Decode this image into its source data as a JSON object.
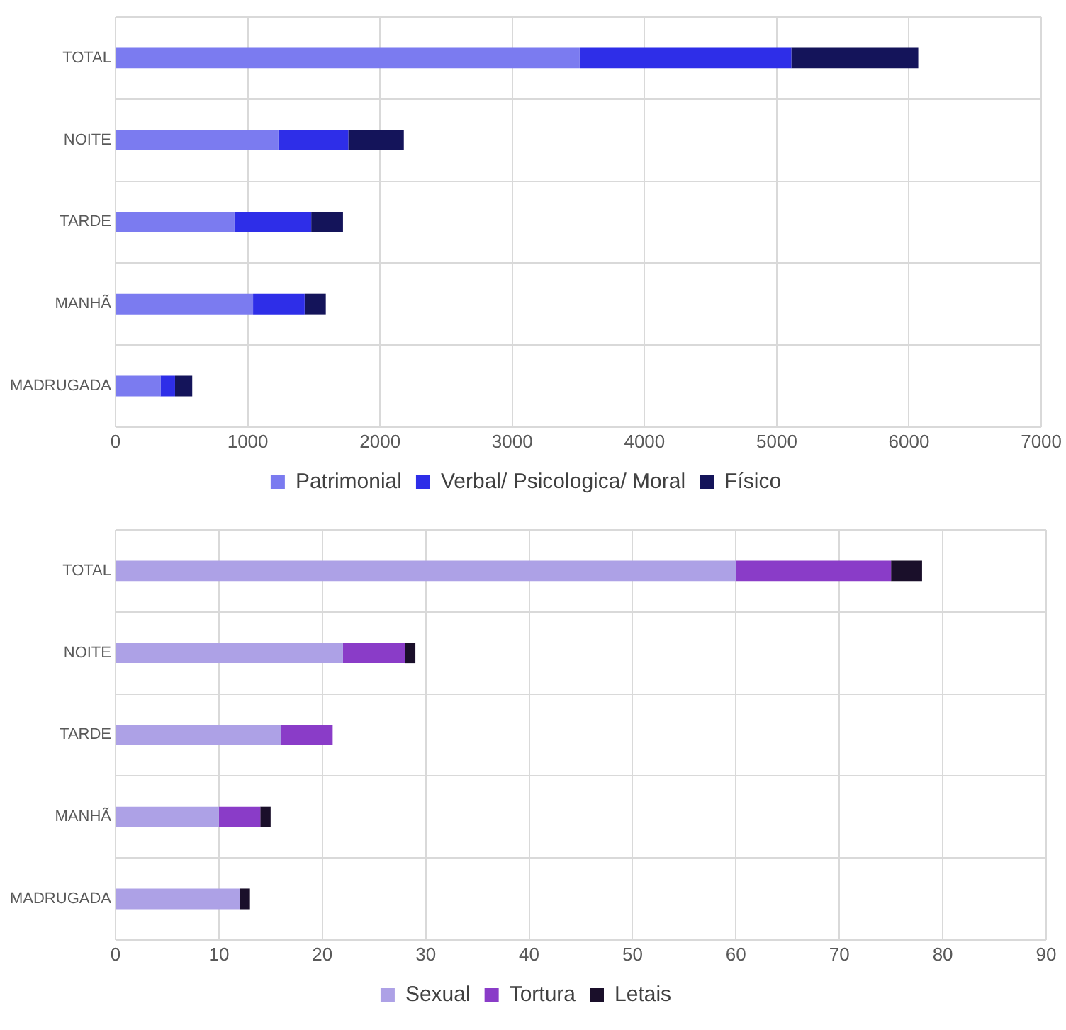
{
  "chart_data": [
    {
      "type": "bar",
      "orientation": "horizontal",
      "stacked": true,
      "categories": [
        "TOTAL",
        "NOITE",
        "TARDE",
        "MANHÃ",
        "MADRUGADA"
      ],
      "series": [
        {
          "name": "Patrimonial",
          "color": "#7b7bf0",
          "values": [
            3510,
            1230,
            900,
            1040,
            340
          ]
        },
        {
          "name": "Verbal/ Psicologica/ Moral",
          "color": "#2e2ee8",
          "values": [
            1600,
            530,
            580,
            390,
            110
          ]
        },
        {
          "name": "Físico",
          "color": "#14145a",
          "values": [
            960,
            420,
            240,
            160,
            130
          ]
        }
      ],
      "xlim": [
        0,
        7000
      ],
      "xticks": [
        0,
        1000,
        2000,
        3000,
        4000,
        5000,
        6000,
        7000
      ],
      "grid": true,
      "legend": "bottom"
    },
    {
      "type": "bar",
      "orientation": "horizontal",
      "stacked": true,
      "categories": [
        "TOTAL",
        "NOITE",
        "TARDE",
        "MANHÃ",
        "MADRUGADA"
      ],
      "series": [
        {
          "name": "Sexual",
          "color": "#ada1e6",
          "values": [
            60,
            22,
            16,
            10,
            12
          ]
        },
        {
          "name": "Tortura",
          "color": "#8a3cc8",
          "values": [
            15,
            6,
            5,
            4,
            0
          ]
        },
        {
          "name": "Letais",
          "color": "#1a0f2a",
          "values": [
            3,
            1,
            0,
            1,
            1
          ]
        }
      ],
      "xlim": [
        0,
        90
      ],
      "xticks": [
        0,
        10,
        20,
        30,
        40,
        50,
        60,
        70,
        80,
        90
      ],
      "grid": true,
      "legend": "bottom"
    }
  ]
}
